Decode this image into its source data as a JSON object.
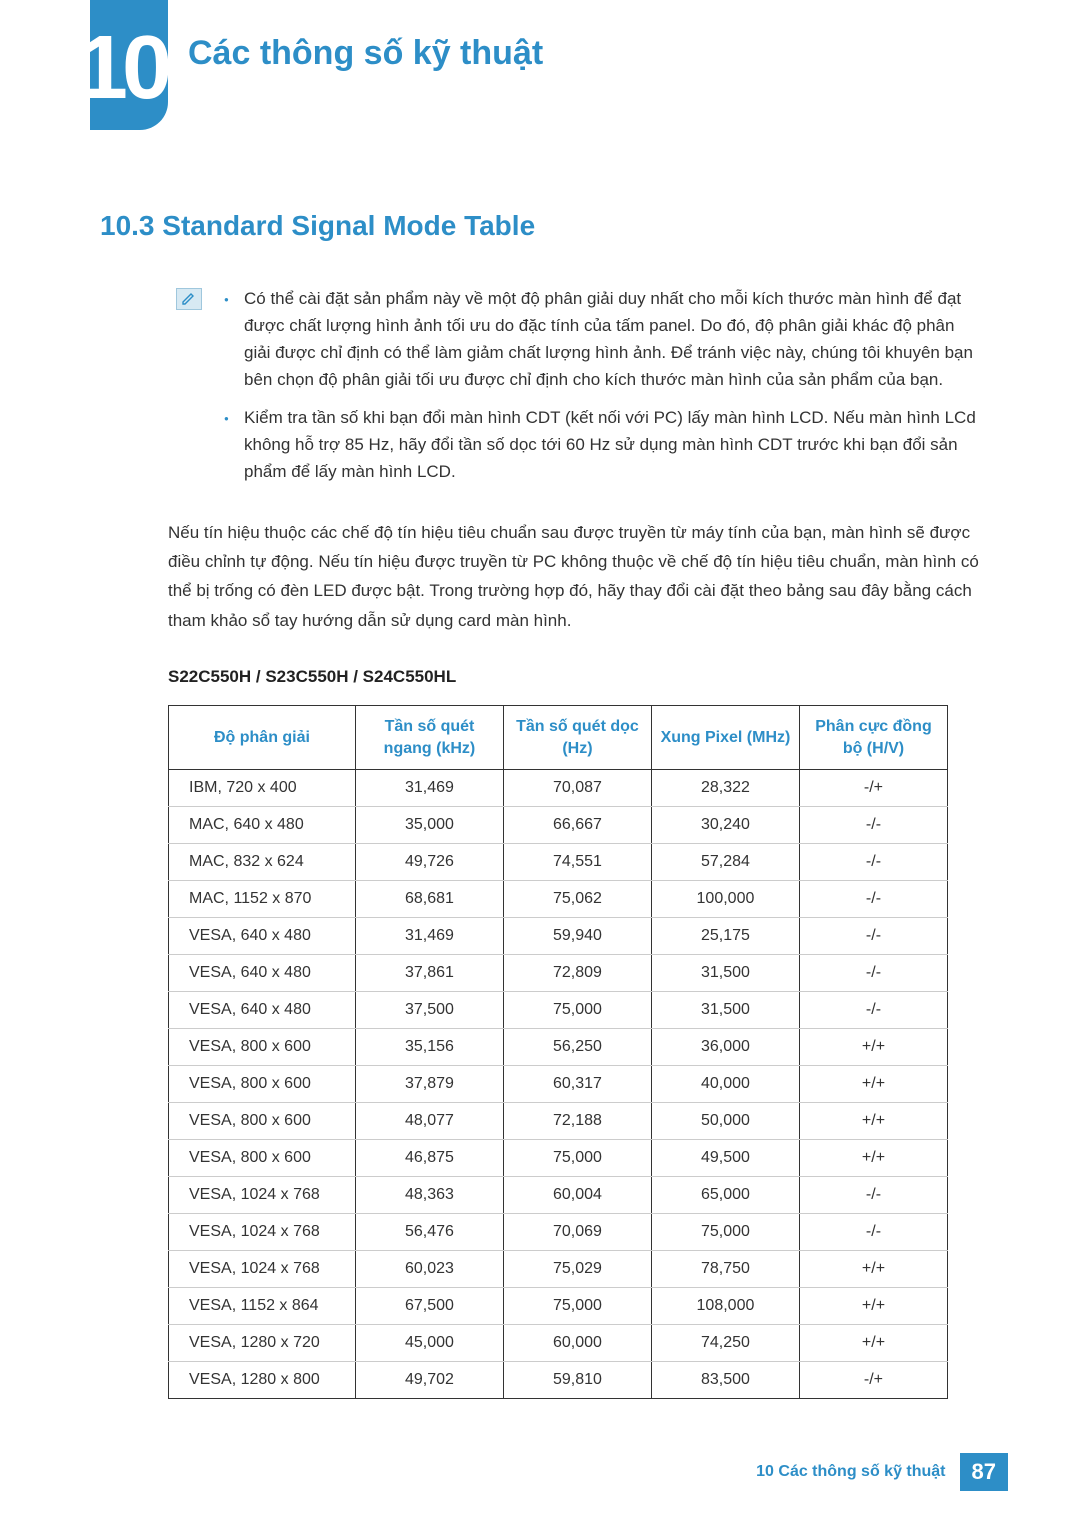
{
  "colors": {
    "accent": "#2d8ec7",
    "text": "#333333",
    "border_main": "#333333",
    "border_row": "#cccccc",
    "icon_bg": "#d7e9f3",
    "icon_border": "#9fc7dd"
  },
  "chapter": {
    "number": "10",
    "title": "Các thông số kỹ thuật"
  },
  "section": {
    "number": "10.3",
    "title": "Standard Signal Mode Table",
    "heading": "10.3  Standard Signal Mode Table"
  },
  "notes": {
    "icon_name": "pencil-note-icon",
    "items": [
      "Có thể cài đặt sản phẩm này về một độ phân giải duy nhất cho mỗi kích thước màn hình để đạt được chất lượng hình ảnh tối ưu do đặc tính của tấm panel. Do đó, độ phân giải khác độ phân giải được chỉ định có thể làm giảm chất lượng hình ảnh. Để tránh việc này, chúng tôi khuyên bạn bên chọn độ phân giải tối ưu được chỉ định cho kích thước màn hình của sản phẩm của bạn.",
      "Kiểm tra tần số khi bạn đổi màn hình CDT (kết nối với PC) lấy màn hình LCD. Nếu màn hình LCd không hỗ trợ 85 Hz, hãy đổi tần số dọc tới 60 Hz sử dụng màn hình CDT trước khi bạn đổi sản phẩm để lấy màn hình LCD."
    ]
  },
  "body_paragraph": "Nếu tín hiệu thuộc các chế độ tín hiệu tiêu chuẩn sau được truyền từ máy tính của bạn, màn hình sẽ được điều chỉnh tự động. Nếu tín hiệu được truyền từ PC không thuộc về chế độ tín hiệu tiêu chuẩn, màn hình có thể bị trống có đèn LED được bật. Trong trường hợp đó, hãy thay đổi cài đặt theo bảng sau đây bằng cách tham khảo sổ tay hướng dẫn sử dụng card màn hình.",
  "models_label": "S22C550H / S23C550H / S24C550HL",
  "signal_table": {
    "columns": [
      "Độ phân giải",
      "Tần số quét ngang (kHz)",
      "Tần số quét dọc (Hz)",
      "Xung Pixel (MHz)",
      "Phân cực đồng bộ (H/V)"
    ],
    "column_widths_pct": [
      24,
      19,
      19,
      19,
      19
    ],
    "rows": [
      [
        "IBM, 720 x 400",
        "31,469",
        "70,087",
        "28,322",
        "-/+"
      ],
      [
        "MAC, 640 x 480",
        "35,000",
        "66,667",
        "30,240",
        "-/-"
      ],
      [
        "MAC, 832 x 624",
        "49,726",
        "74,551",
        "57,284",
        "-/-"
      ],
      [
        "MAC, 1152 x 870",
        "68,681",
        "75,062",
        "100,000",
        "-/-"
      ],
      [
        "VESA, 640 x 480",
        "31,469",
        "59,940",
        "25,175",
        "-/-"
      ],
      [
        "VESA, 640 x 480",
        "37,861",
        "72,809",
        "31,500",
        "-/-"
      ],
      [
        "VESA, 640 x 480",
        "37,500",
        "75,000",
        "31,500",
        "-/-"
      ],
      [
        "VESA, 800 x 600",
        "35,156",
        "56,250",
        "36,000",
        "+/+"
      ],
      [
        "VESA, 800 x 600",
        "37,879",
        "60,317",
        "40,000",
        "+/+"
      ],
      [
        "VESA, 800 x 600",
        "48,077",
        "72,188",
        "50,000",
        "+/+"
      ],
      [
        "VESA, 800 x 600",
        "46,875",
        "75,000",
        "49,500",
        "+/+"
      ],
      [
        "VESA, 1024 x 768",
        "48,363",
        "60,004",
        "65,000",
        "-/-"
      ],
      [
        "VESA, 1024 x 768",
        "56,476",
        "70,069",
        "75,000",
        "-/-"
      ],
      [
        "VESA, 1024 x 768",
        "60,023",
        "75,029",
        "78,750",
        "+/+"
      ],
      [
        "VESA, 1152 x 864",
        "67,500",
        "75,000",
        "108,000",
        "+/+"
      ],
      [
        "VESA, 1280 x 720",
        "45,000",
        "60,000",
        "74,250",
        "+/+"
      ],
      [
        "VESA, 1280 x 800",
        "49,702",
        "59,810",
        "83,500",
        "-/+"
      ]
    ]
  },
  "footer": {
    "text": "10 Các thông số kỹ thuật",
    "page": "87"
  }
}
